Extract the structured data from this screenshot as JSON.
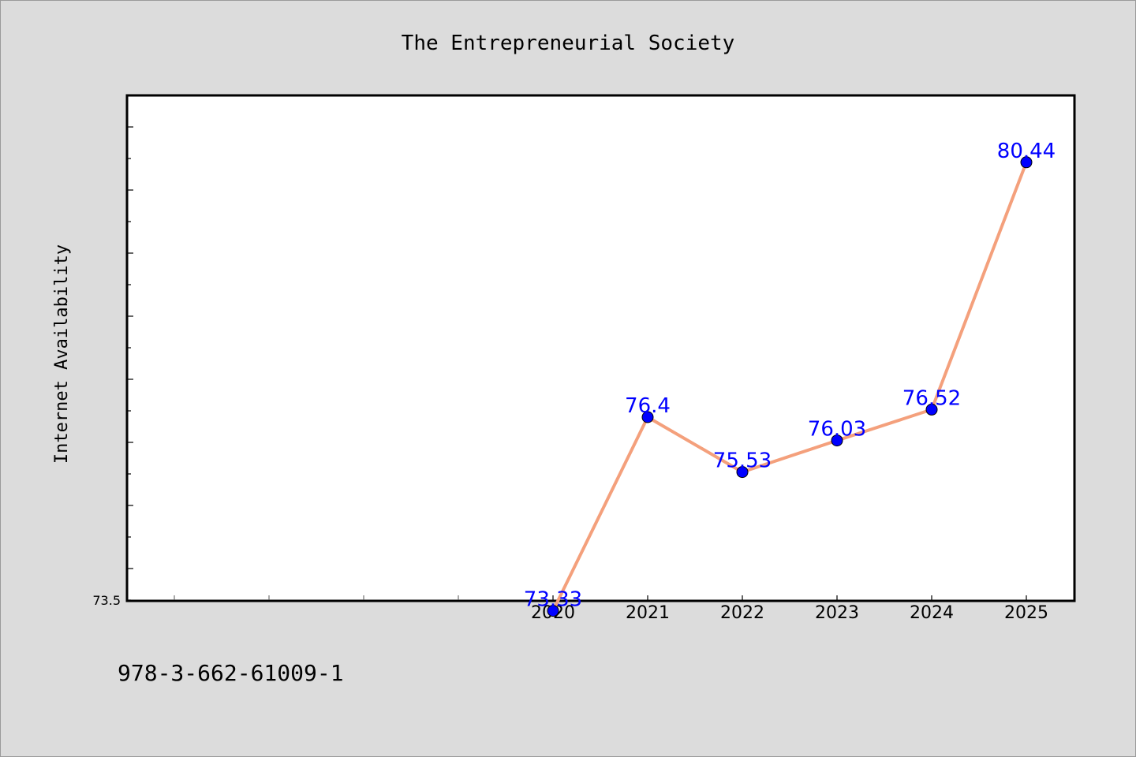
{
  "footnote": "978-3-662-61009-1",
  "colors": {
    "line": "#f4a07c",
    "marker": "#0000ff",
    "label": "#0000ff",
    "background": "#dcdcdc",
    "plot_background": "#ffffff"
  },
  "chart_data": {
    "type": "line",
    "title": "The Entrepreneurial Society",
    "xlabel": "",
    "ylabel": "Internet Availability",
    "categories": [
      "2020",
      "2021",
      "2022",
      "2023",
      "2024",
      "2025"
    ],
    "series": [
      {
        "values": [
          73.33,
          76.4,
          75.53,
          76.03,
          76.52,
          80.44
        ]
      }
    ],
    "data_labels": [
      "73.33",
      "76.4",
      "75.53",
      "76.03",
      "76.52",
      "80.44"
    ],
    "ytick_labels": [
      "73.5"
    ],
    "ylim": [
      73.5,
      81.5
    ],
    "grid": false,
    "legend": "none"
  }
}
